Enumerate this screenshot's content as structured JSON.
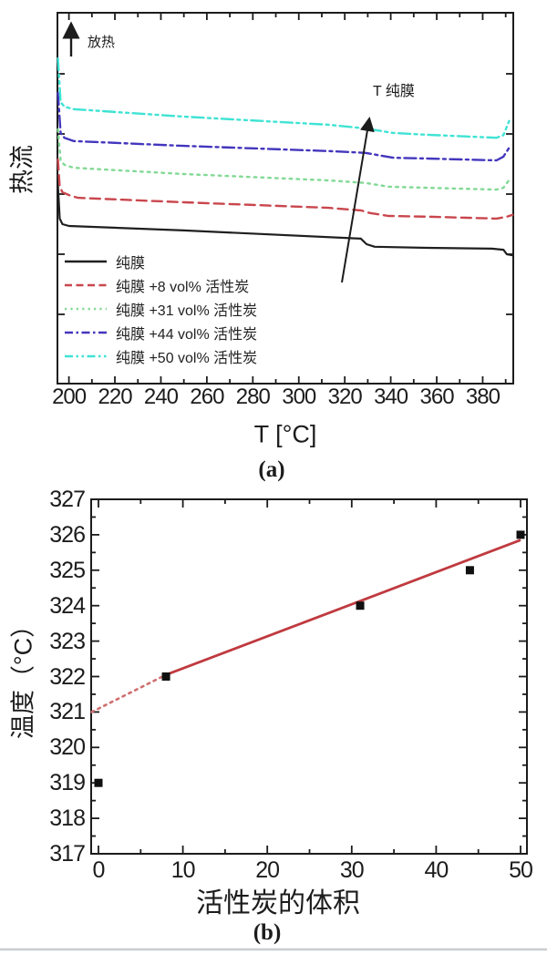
{
  "figure": {
    "background": "#ffffff",
    "divider_color": "#c9ced1"
  },
  "chart_a": {
    "ylabel": "热流",
    "xlabel": "T [°C]",
    "caption": "(a)",
    "exo_label": "放热",
    "annotation": "T 纯膜",
    "x_tick_labels": [
      "200",
      "220",
      "240",
      "260",
      "280",
      "300",
      "320",
      "340",
      "360",
      "380"
    ],
    "legend": [
      {
        "label": "纯膜",
        "color": "#1f1f1f",
        "style": "solid"
      },
      {
        "label": "纯膜 +8 vol%  活性炭",
        "color": "#c9464d",
        "style": "dashed"
      },
      {
        "label": "纯膜 +31 vol% 活性炭",
        "color": "#82d995",
        "style": "dotted"
      },
      {
        "label": "纯膜 +44 vol% 活性炭",
        "color": "#4336bd",
        "style": "dashdot"
      },
      {
        "label": "纯膜 +50 vol% 活性炭",
        "color": "#3fe3d4",
        "style": "dashdotdot"
      }
    ]
  },
  "chart_b": {
    "ylabel": "温度（°C）",
    "xlabel": "活性炭的体积",
    "caption": "(b)",
    "x_tick_labels": [
      "0",
      "10",
      "20",
      "30",
      "40",
      "50"
    ],
    "y_tick_labels": [
      "327",
      "326",
      "325",
      "324",
      "323",
      "322",
      "321",
      "320",
      "319",
      "318",
      "317"
    ]
  },
  "chart_data": [
    {
      "id": "a",
      "type": "line",
      "title": "",
      "xlabel": "T [°C]",
      "ylabel": "热流 (heat flow, arbitrary units, exothermic up)",
      "xlim": [
        195,
        393
      ],
      "x_ticks": [
        200,
        220,
        240,
        260,
        280,
        300,
        320,
        340,
        360,
        380
      ],
      "x_minor_ticks": [
        210,
        230,
        250,
        270,
        290,
        310,
        330,
        350,
        370,
        390
      ],
      "grid": false,
      "legend_position": "lower-left",
      "annotations": [
        {
          "text": "放热",
          "meaning": "exothermic direction, vertical up arrow at top-left"
        },
        {
          "text": "T 纯膜",
          "meaning": "arrow across curves marking melting-temperature shift toward pure membrane"
        }
      ],
      "y_units_note": "curves are vertically offset DSC traces; values below are arbitrary units 0-100",
      "series": [
        {
          "name": "纯膜",
          "style": "solid",
          "color": "#1f1f1f",
          "points": [
            [
              195.2,
              53.6
            ],
            [
              196,
              44.5
            ],
            [
              197.2,
              43
            ],
            [
              200,
              42.5
            ],
            [
              250,
              41.3
            ],
            [
              327,
              39.1
            ],
            [
              329.5,
              37.6
            ],
            [
              333,
              36.9
            ],
            [
              356,
              36.6
            ],
            [
              384,
              36.4
            ],
            [
              389,
              36.1
            ],
            [
              390.5,
              34.9
            ],
            [
              393,
              34.6
            ]
          ]
        },
        {
          "name": "纯膜 +8 vol% 活性炭",
          "style": "dashed",
          "color": "#c9464d",
          "points": [
            [
              195.2,
              60.4
            ],
            [
              196,
              53.1
            ],
            [
              197.2,
              51.6
            ],
            [
              201,
              50.6
            ],
            [
              204,
              50.1
            ],
            [
              250,
              48.9
            ],
            [
              313,
              47.4
            ],
            [
              327,
              46.7
            ],
            [
              331,
              46.0
            ],
            [
              339,
              45.2
            ],
            [
              356,
              45.0
            ],
            [
              386,
              44.5
            ],
            [
              390.5,
              45.0
            ],
            [
              393,
              45.5
            ]
          ]
        },
        {
          "name": "纯膜 +31 vol% 活性炭",
          "style": "dotted",
          "color": "#82d995",
          "points": [
            [
              195.2,
              68.6
            ],
            [
              196.4,
              60.2
            ],
            [
              198,
              59.0
            ],
            [
              202,
              58.2
            ],
            [
              250,
              56.5
            ],
            [
              313,
              54.8
            ],
            [
              329,
              54.1
            ],
            [
              339,
              53.1
            ],
            [
              356,
              52.8
            ],
            [
              386,
              52.3
            ],
            [
              389,
              52.8
            ],
            [
              392,
              55.3
            ]
          ]
        },
        {
          "name": "纯膜 +44 vol% 活性炭",
          "style": "dashdot",
          "color": "#4336bd",
          "points": [
            [
              195.2,
              78.4
            ],
            [
              196.4,
              67.6
            ],
            [
              198,
              66.3
            ],
            [
              202,
              65.4
            ],
            [
              250,
              64.1
            ],
            [
              313,
              62.7
            ],
            [
              329,
              62.2
            ],
            [
              341,
              60.9
            ],
            [
              356,
              60.7
            ],
            [
              386,
              60.2
            ],
            [
              389,
              61.2
            ],
            [
              391.5,
              63.6
            ]
          ]
        },
        {
          "name": "纯膜 +50 vol% 活性炭",
          "style": "dashdotdot",
          "color": "#3fe3d4",
          "points": [
            [
              195.2,
              87.7
            ],
            [
              196.4,
              75.9
            ],
            [
              198,
              74.7
            ],
            [
              202,
              74.0
            ],
            [
              250,
              72.0
            ],
            [
              313,
              69.8
            ],
            [
              329,
              68.8
            ],
            [
              341,
              67.6
            ],
            [
              356,
              67.1
            ],
            [
              386,
              66.3
            ],
            [
              389,
              67.0
            ],
            [
              391.5,
              70.8
            ]
          ]
        }
      ]
    },
    {
      "id": "b",
      "type": "scatter",
      "title": "",
      "xlabel": "活性炭的体积",
      "ylabel": "温度（°C）",
      "xlim": [
        0,
        50
      ],
      "ylim": [
        317,
        327
      ],
      "x_ticks": [
        0,
        10,
        20,
        30,
        40,
        50
      ],
      "y_ticks": [
        317,
        318,
        319,
        320,
        321,
        322,
        323,
        324,
        325,
        326,
        327
      ],
      "grid": false,
      "marker": "black-square",
      "points": [
        [
          0,
          319
        ],
        [
          8,
          322
        ],
        [
          31,
          324
        ],
        [
          44,
          325
        ],
        [
          50,
          326
        ]
      ],
      "fit_line": {
        "color_solid": "#bf3a3f",
        "color_dotted": "#cf6f6f",
        "solid_from": [
          8,
          322.05
        ],
        "solid_to": [
          50,
          325.85
        ],
        "dotted_from": [
          -0.8,
          321.0
        ],
        "dotted_to": [
          8,
          322.05
        ],
        "note": "solid linear fit over 8-50 vol%; dotted extrapolation toward intercept ~321.1 at 0"
      }
    }
  ]
}
